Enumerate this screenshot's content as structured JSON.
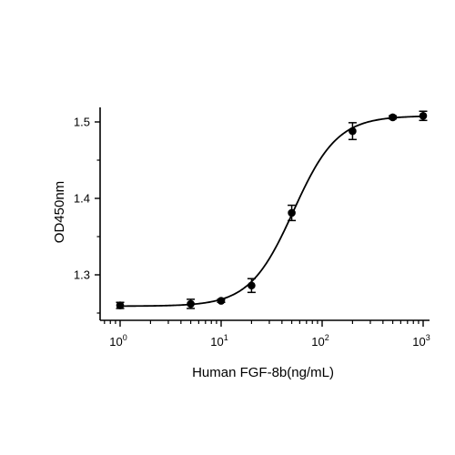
{
  "chart_data": {
    "type": "scatter",
    "title": "",
    "xlabel": "Human FGF-8b(ng/mL)",
    "ylabel": "OD450nm",
    "x_scale": "log",
    "xlim": [
      0.68,
      1000
    ],
    "ylim": [
      1.24,
      1.515
    ],
    "grid": false,
    "legend": "none",
    "x_ticks": [
      {
        "value": 1,
        "base": "10",
        "exp": "0"
      },
      {
        "value": 10,
        "base": "10",
        "exp": "1"
      },
      {
        "value": 100,
        "base": "10",
        "exp": "2"
      },
      {
        "value": 1000,
        "base": "10",
        "exp": "3"
      }
    ],
    "y_ticks": [
      {
        "value": 1.3,
        "label": "1.3"
      },
      {
        "value": 1.4,
        "label": "1.4"
      },
      {
        "value": 1.5,
        "label": "1.5"
      }
    ],
    "series": [
      {
        "points": [
          {
            "x": 1,
            "y": 1.26,
            "err": 0.004
          },
          {
            "x": 5,
            "y": 1.262,
            "err": 0.006
          },
          {
            "x": 10,
            "y": 1.266,
            "err": 0.002
          },
          {
            "x": 20,
            "y": 1.286,
            "err": 0.009
          },
          {
            "x": 50,
            "y": 1.381,
            "err": 0.01
          },
          {
            "x": 200,
            "y": 1.488,
            "err": 0.011
          },
          {
            "x": 500,
            "y": 1.506,
            "err": 0.002
          },
          {
            "x": 1000,
            "y": 1.508,
            "err": 0.006
          }
        ]
      }
    ],
    "fit_curve": {
      "model": "4PL",
      "bottom": 1.259,
      "top": 1.508,
      "ec50": 52,
      "hill": 2.0
    },
    "colors": {
      "marker": "#000000",
      "line": "#000000",
      "axis": "#000000"
    }
  }
}
